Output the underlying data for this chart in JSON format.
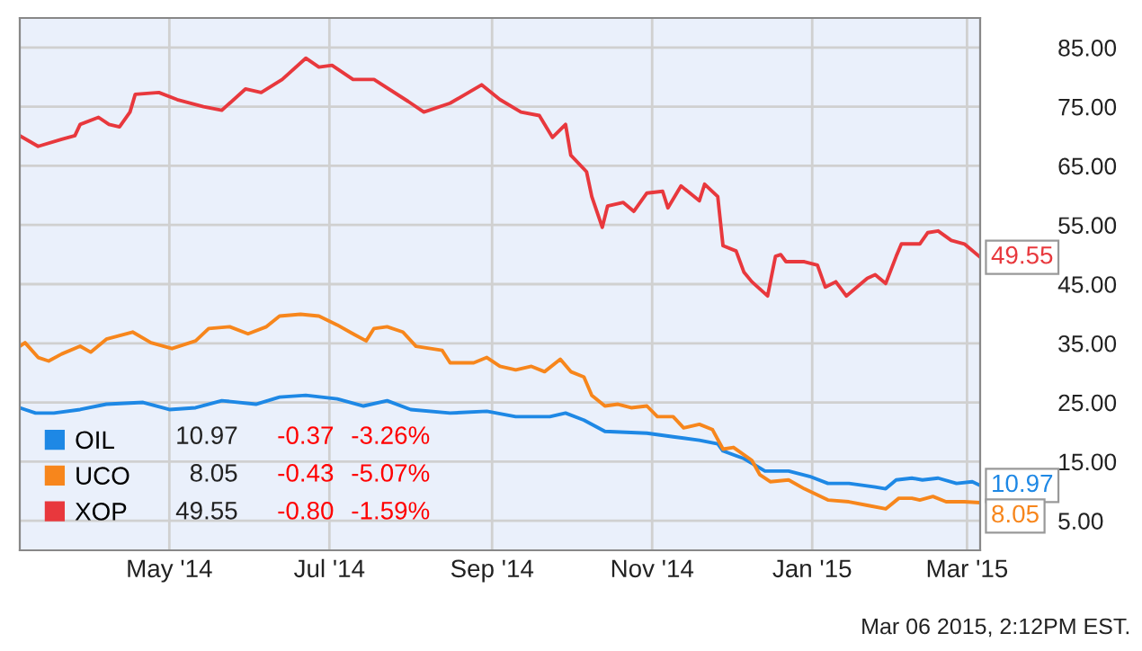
{
  "chart_data": {
    "type": "line",
    "xlim": [
      "2014-03-05",
      "2015-03-06"
    ],
    "xticks": [
      {
        "value": "2014-05-01",
        "label": "May '14"
      },
      {
        "value": "2014-07-01",
        "label": "Jul '14"
      },
      {
        "value": "2014-09-01",
        "label": "Sep '14"
      },
      {
        "value": "2014-11-01",
        "label": "Nov '14"
      },
      {
        "value": "2015-01-01",
        "label": "Jan '15"
      },
      {
        "value": "2015-03-01",
        "label": "Mar '15"
      }
    ],
    "ylim": [
      0,
      90
    ],
    "yticks": [
      {
        "value": 5,
        "label": "5.00"
      },
      {
        "value": 15,
        "label": "15.00"
      },
      {
        "value": 25,
        "label": "25.00"
      },
      {
        "value": 35,
        "label": "35.00"
      },
      {
        "value": 45,
        "label": "45.00"
      },
      {
        "value": 55,
        "label": "55.00"
      },
      {
        "value": 65,
        "label": "65.00"
      },
      {
        "value": 75,
        "label": "75.00"
      },
      {
        "value": 85,
        "label": "85.00"
      }
    ],
    "grid": true,
    "legend": "bottom left",
    "marker": "none",
    "line_style": "solid",
    "series": [
      {
        "name": "OIL",
        "color": "#1e88e5",
        "x": [
          "2014-03-05",
          "2014-03-11",
          "2014-03-18",
          "2014-03-28",
          "2014-04-07",
          "2014-04-21",
          "2014-05-01",
          "2014-05-11",
          "2014-05-21",
          "2014-06-03",
          "2014-06-12",
          "2014-06-22",
          "2014-07-04",
          "2014-07-14",
          "2014-07-23",
          "2014-08-01",
          "2014-08-16",
          "2014-08-30",
          "2014-09-10",
          "2014-09-23",
          "2014-09-29",
          "2014-10-06",
          "2014-10-14",
          "2014-10-30",
          "2014-11-09",
          "2014-11-19",
          "2014-11-26",
          "2014-11-28",
          "2014-12-06",
          "2014-12-14",
          "2014-12-23",
          "2014-12-31",
          "2015-01-07",
          "2015-01-15",
          "2015-01-25",
          "2015-01-29",
          "2015-02-02",
          "2015-02-08",
          "2015-02-12",
          "2015-02-18",
          "2015-02-25",
          "2015-03-03",
          "2015-03-06"
        ],
        "values": [
          24.1,
          23.2,
          23.2,
          23.8,
          24.7,
          25.0,
          23.8,
          24.1,
          25.3,
          24.7,
          25.9,
          26.2,
          25.6,
          24.4,
          25.3,
          23.8,
          23.2,
          23.5,
          22.6,
          22.6,
          23.2,
          22.0,
          20.1,
          19.8,
          19.2,
          18.6,
          18.0,
          16.8,
          15.5,
          13.4,
          13.4,
          12.5,
          11.3,
          11.3,
          10.7,
          10.4,
          11.9,
          12.2,
          11.9,
          12.2,
          11.3,
          11.6,
          10.97
        ],
        "value_labels": [
          null,
          null,
          null,
          null,
          null,
          null,
          null,
          null,
          null,
          null,
          null,
          null,
          null,
          null,
          null,
          null,
          null,
          null,
          null,
          null,
          null,
          null,
          null,
          null,
          null,
          null,
          null,
          null,
          null,
          null,
          null,
          null,
          null,
          null,
          null,
          null,
          null,
          null,
          null,
          null,
          null,
          null,
          "10.97"
        ]
      },
      {
        "name": "UCO",
        "color": "#f7861c",
        "x": [
          "2014-03-05",
          "2014-03-07",
          "2014-03-12",
          "2014-03-16",
          "2014-03-21",
          "2014-03-28",
          "2014-04-01",
          "2014-04-07",
          "2014-04-17",
          "2014-04-24",
          "2014-05-02",
          "2014-05-11",
          "2014-05-16",
          "2014-05-24",
          "2014-05-31",
          "2014-06-07",
          "2014-06-12",
          "2014-06-20",
          "2014-06-27",
          "2014-07-04",
          "2014-07-10",
          "2014-07-15",
          "2014-07-18",
          "2014-07-23",
          "2014-07-29",
          "2014-08-03",
          "2014-08-13",
          "2014-08-16",
          "2014-08-25",
          "2014-08-30",
          "2014-09-04",
          "2014-09-10",
          "2014-09-16",
          "2014-09-21",
          "2014-09-27",
          "2014-10-01",
          "2014-10-06",
          "2014-10-09",
          "2014-10-14",
          "2014-10-19",
          "2014-10-24",
          "2014-10-30",
          "2014-11-03",
          "2014-11-09",
          "2014-11-13",
          "2014-11-19",
          "2014-11-24",
          "2014-11-28",
          "2014-12-02",
          "2014-12-09",
          "2014-12-12",
          "2014-12-16",
          "2014-12-23",
          "2014-12-29",
          "2015-01-07",
          "2015-01-15",
          "2015-01-22",
          "2015-01-29",
          "2015-02-03",
          "2015-02-08",
          "2015-02-11",
          "2015-02-16",
          "2015-02-21",
          "2015-02-28",
          "2015-03-06"
        ],
        "values": [
          34.5,
          35.1,
          32.6,
          32.0,
          33.2,
          34.5,
          33.5,
          35.7,
          36.9,
          35.1,
          34.1,
          35.4,
          37.5,
          37.8,
          36.6,
          37.8,
          39.6,
          39.9,
          39.6,
          38.1,
          36.6,
          35.4,
          37.5,
          37.8,
          36.9,
          34.5,
          33.8,
          31.7,
          31.7,
          32.6,
          31.1,
          30.5,
          31.1,
          30.2,
          32.3,
          30.2,
          29.3,
          26.2,
          24.4,
          24.7,
          24.1,
          24.4,
          22.6,
          22.6,
          20.7,
          21.3,
          20.4,
          17.1,
          17.4,
          15.2,
          12.8,
          11.6,
          11.9,
          10.4,
          8.5,
          8.2,
          7.6,
          7.0,
          8.8,
          8.8,
          8.5,
          9.1,
          8.2,
          8.2,
          8.05
        ],
        "value_labels": [
          null,
          null,
          null,
          null,
          null,
          null,
          null,
          null,
          null,
          null,
          null,
          null,
          null,
          null,
          null,
          null,
          null,
          null,
          null,
          null,
          null,
          null,
          null,
          null,
          null,
          null,
          null,
          null,
          null,
          null,
          null,
          null,
          null,
          null,
          null,
          null,
          null,
          null,
          null,
          null,
          null,
          null,
          null,
          null,
          null,
          null,
          null,
          null,
          null,
          null,
          null,
          null,
          null,
          null,
          null,
          null,
          null,
          null,
          null,
          null,
          null,
          null,
          null,
          null,
          "8.05"
        ]
      },
      {
        "name": "XOP",
        "color": "#e8383d",
        "x": [
          "2014-03-05",
          "2014-03-12",
          "2014-03-21",
          "2014-03-26",
          "2014-03-28",
          "2014-04-04",
          "2014-04-08",
          "2014-04-12",
          "2014-04-16",
          "2014-04-18",
          "2014-04-27",
          "2014-05-04",
          "2014-05-14",
          "2014-05-21",
          "2014-05-30",
          "2014-06-05",
          "2014-06-13",
          "2014-06-22",
          "2014-06-27",
          "2014-07-02",
          "2014-07-10",
          "2014-07-18",
          "2014-07-31",
          "2014-08-06",
          "2014-08-16",
          "2014-08-28",
          "2014-09-04",
          "2014-09-12",
          "2014-09-19",
          "2014-09-24",
          "2014-09-29",
          "2014-10-01",
          "2014-10-07",
          "2014-10-09",
          "2014-10-13",
          "2014-10-15",
          "2014-10-21",
          "2014-10-25",
          "2014-10-30",
          "2014-11-05",
          "2014-11-07",
          "2014-11-12",
          "2014-11-19",
          "2014-11-21",
          "2014-11-26",
          "2014-11-28",
          "2014-12-03",
          "2014-12-06",
          "2014-12-09",
          "2014-12-15",
          "2014-12-18",
          "2014-12-20",
          "2014-12-22",
          "2014-12-29",
          "2015-01-03",
          "2015-01-06",
          "2015-01-10",
          "2015-01-14",
          "2015-01-22",
          "2015-01-25",
          "2015-01-29",
          "2015-02-02",
          "2015-02-04",
          "2015-02-11",
          "2015-02-14",
          "2015-02-18",
          "2015-02-23",
          "2015-02-28",
          "2015-03-06"
        ],
        "values": [
          70.1,
          68.3,
          69.5,
          70.1,
          72.0,
          73.2,
          72.0,
          71.6,
          74.1,
          77.1,
          77.4,
          76.2,
          75.0,
          74.4,
          78.0,
          77.4,
          79.6,
          83.2,
          81.7,
          82.0,
          79.6,
          79.6,
          75.9,
          74.1,
          75.6,
          78.7,
          76.2,
          74.1,
          73.5,
          69.8,
          72.0,
          66.8,
          64.0,
          59.8,
          54.6,
          58.2,
          58.8,
          57.3,
          60.4,
          60.7,
          57.9,
          61.6,
          59.1,
          61.9,
          59.8,
          51.5,
          50.6,
          47.0,
          45.4,
          43.0,
          49.7,
          50.0,
          48.8,
          48.8,
          48.2,
          44.5,
          45.4,
          43.0,
          46.0,
          46.6,
          45.1,
          49.7,
          51.8,
          51.8,
          53.7,
          54.0,
          52.4,
          51.8,
          49.55
        ],
        "value_labels": [
          null,
          null,
          null,
          null,
          null,
          null,
          null,
          null,
          null,
          null,
          null,
          null,
          null,
          null,
          null,
          null,
          null,
          null,
          null,
          null,
          null,
          null,
          null,
          null,
          null,
          null,
          null,
          null,
          null,
          null,
          null,
          null,
          null,
          null,
          null,
          null,
          null,
          null,
          null,
          null,
          null,
          null,
          null,
          null,
          null,
          null,
          null,
          null,
          null,
          null,
          null,
          null,
          null,
          null,
          null,
          null,
          null,
          null,
          null,
          null,
          null,
          null,
          null,
          null,
          null,
          null,
          null,
          null,
          "49.55"
        ]
      }
    ],
    "annotations": [
      "10.97",
      "-0.37",
      "-3.26%",
      "8.05",
      "-0.43",
      "-5.07%",
      "49.55",
      "-0.80",
      "-1.59%",
      "Mar 06 2015, 2:12PM EST."
    ]
  }
}
